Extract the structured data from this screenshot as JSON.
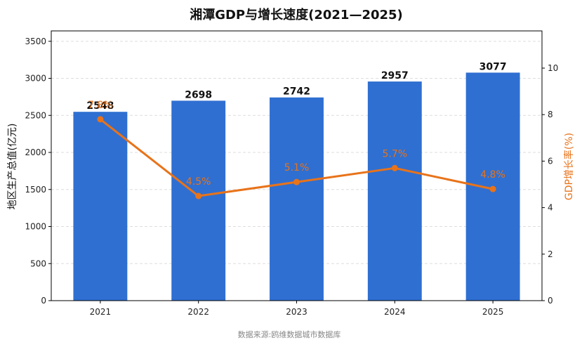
{
  "chart_data": {
    "type": "bar+line",
    "title": "湘潭GDP与增长速度(2021—2025)",
    "categories": [
      "2021",
      "2022",
      "2023",
      "2024",
      "2025"
    ],
    "series": [
      {
        "name": "",
        "type": "bar",
        "axis": "left",
        "values": [
          2548,
          2698,
          2742,
          2957,
          3077
        ],
        "labels": [
          "2548",
          "2698",
          "2742",
          "2957",
          "3077"
        ],
        "color": "#2f6fd1"
      },
      {
        "name": "",
        "type": "line",
        "axis": "right",
        "values": [
          7.8,
          4.5,
          5.1,
          5.7,
          4.8
        ],
        "labels": [
          "7.8%",
          "4.5%",
          "5.1%",
          "5.7%",
          "4.8%"
        ],
        "color": "#e8731a"
      }
    ],
    "ylabel": "地区生产总值(亿元)",
    "y2label": "GDP增长率(%)",
    "ylim": [
      0,
      3640
    ],
    "y2lim": [
      0,
      11.6
    ],
    "yticks": [
      "0",
      "500",
      "1000",
      "1500",
      "2000",
      "2500",
      "3000",
      "3500"
    ],
    "y2ticks": [
      "0",
      "2",
      "4",
      "6",
      "8",
      "10"
    ],
    "grid": "horizontal dashed",
    "source": "数据来源:鸥维数据城市数据库"
  }
}
